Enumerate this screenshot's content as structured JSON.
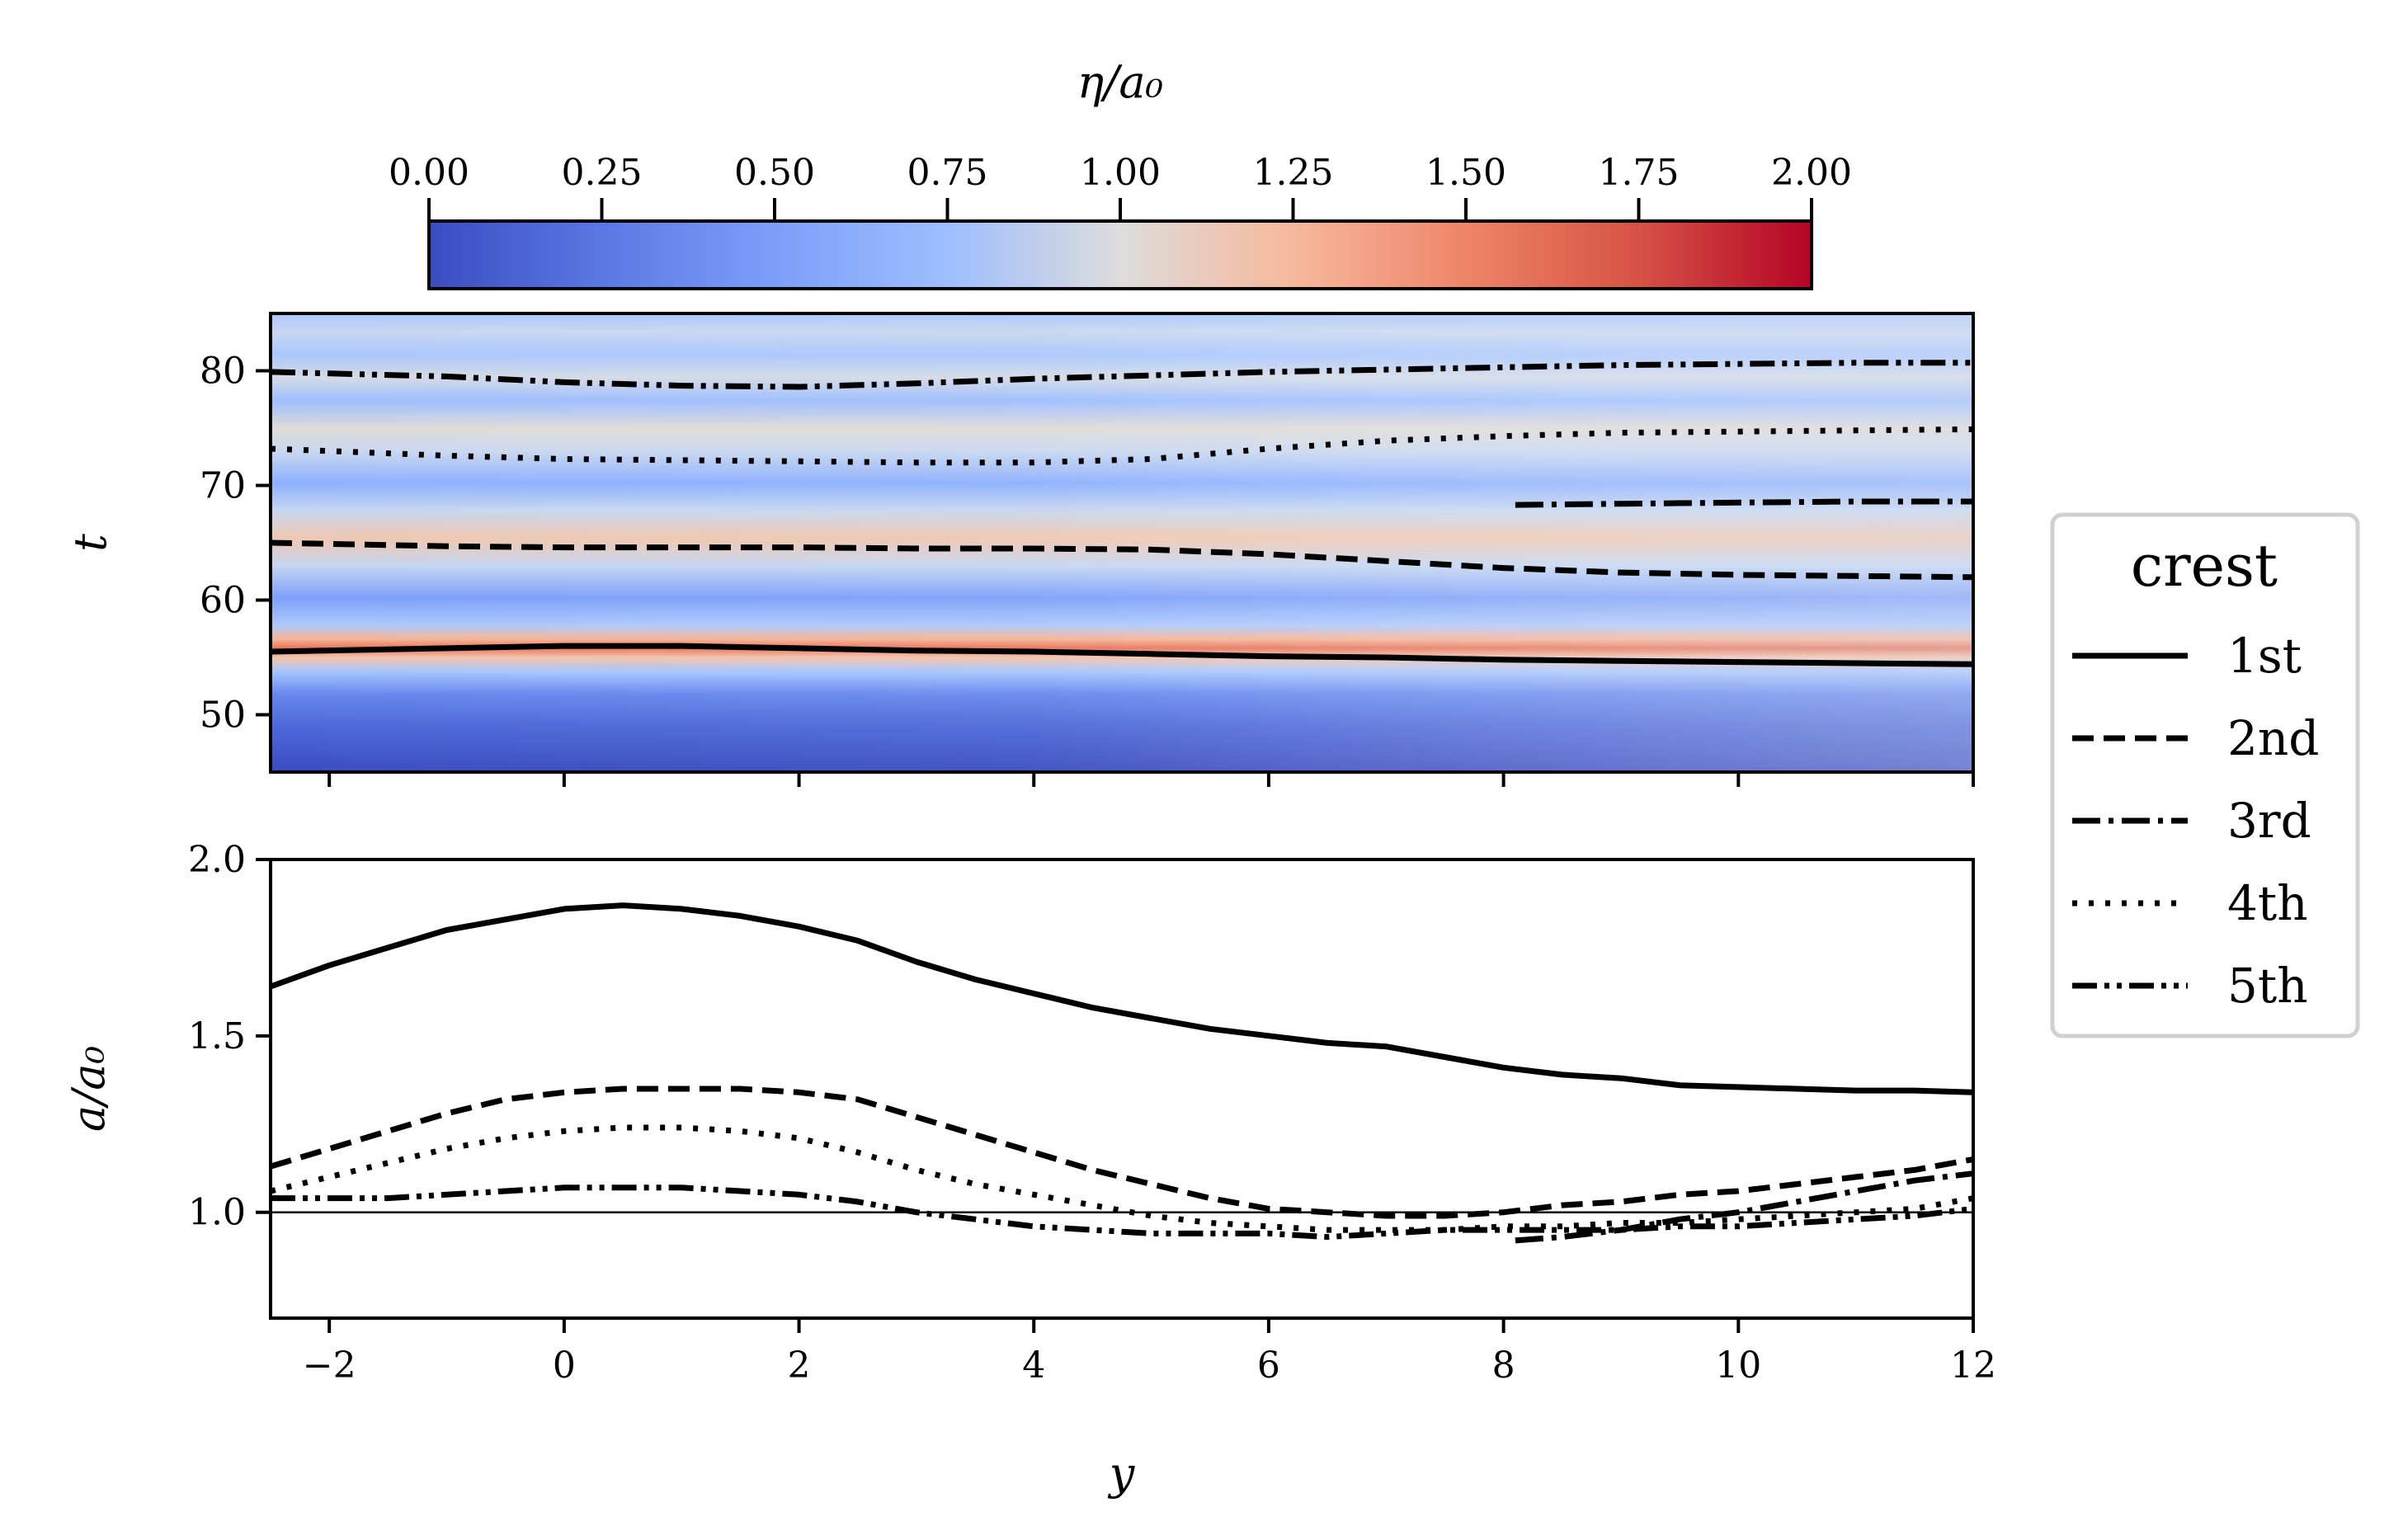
{
  "chart_data": [
    {
      "type": "heatmap",
      "panel": "top",
      "colorbar": {
        "label": "η/a₀",
        "range": [
          0.0,
          2.0
        ],
        "ticks": [
          "0.00",
          "0.25",
          "0.50",
          "0.75",
          "1.00",
          "1.25",
          "1.50",
          "1.75",
          "2.00"
        ],
        "colormap": "coolwarm"
      },
      "xlim": [
        -2.5,
        12
      ],
      "ylim": [
        45,
        85
      ],
      "ylabel": "t",
      "yticks": [
        "50",
        "60",
        "70",
        "80"
      ],
      "crest_lines": [
        {
          "name": "1st",
          "style": "solid",
          "x": [
            -2.5,
            -1,
            0,
            1,
            2,
            3,
            4,
            5,
            6,
            7,
            8,
            9,
            10,
            11,
            12
          ],
          "y": [
            55.5,
            55.8,
            56.0,
            56.0,
            55.8,
            55.6,
            55.5,
            55.3,
            55.1,
            55.0,
            54.8,
            54.7,
            54.6,
            54.5,
            54.4
          ]
        },
        {
          "name": "2nd",
          "style": "dashed",
          "x": [
            -2.5,
            -1,
            0,
            1,
            2,
            3,
            4,
            5,
            6,
            7,
            8,
            9,
            10,
            11,
            12
          ],
          "y": [
            65.0,
            64.7,
            64.6,
            64.6,
            64.6,
            64.5,
            64.5,
            64.4,
            64.0,
            63.4,
            62.8,
            62.4,
            62.2,
            62.1,
            62.0
          ]
        },
        {
          "name": "3rd",
          "style": "dashdot",
          "x": [
            8.1,
            9,
            10,
            11,
            12
          ],
          "y": [
            68.3,
            68.4,
            68.5,
            68.6,
            68.6
          ]
        },
        {
          "name": "4th",
          "style": "dotted",
          "x": [
            -2.5,
            -1,
            0,
            1,
            2,
            3,
            4,
            5,
            6,
            7,
            8,
            9,
            10,
            11,
            12
          ],
          "y": [
            73.2,
            72.6,
            72.3,
            72.2,
            72.1,
            72.0,
            72.0,
            72.3,
            73.2,
            73.9,
            74.3,
            74.6,
            74.7,
            74.8,
            74.9
          ]
        },
        {
          "name": "5th",
          "style": "dashdotdot",
          "x": [
            -2.5,
            -1,
            0,
            1,
            2,
            3,
            4,
            5,
            6,
            7,
            8,
            9,
            10,
            11,
            12
          ],
          "y": [
            79.9,
            79.5,
            79.0,
            78.7,
            78.6,
            78.9,
            79.3,
            79.6,
            79.9,
            80.1,
            80.3,
            80.5,
            80.6,
            80.7,
            80.7
          ]
        }
      ]
    },
    {
      "type": "line",
      "panel": "bottom",
      "xlabel": "y",
      "ylabel": "a/a₀",
      "xlim": [
        -2.5,
        12
      ],
      "ylim": [
        0.7,
        2.0
      ],
      "xticks": [
        "−2",
        "0",
        "2",
        "4",
        "6",
        "8",
        "10",
        "12"
      ],
      "yticks": [
        "1.0",
        "1.5",
        "2.0"
      ],
      "reference_line": 1.0,
      "series": [
        {
          "name": "1st",
          "style": "solid",
          "x": [
            -2.5,
            -2,
            -1.5,
            -1,
            -0.5,
            0,
            0.5,
            1,
            1.5,
            2,
            2.5,
            3,
            3.5,
            4,
            4.5,
            5,
            5.5,
            6,
            6.5,
            7,
            7.5,
            8,
            8.5,
            9,
            9.5,
            10,
            10.5,
            11,
            11.5,
            12
          ],
          "values": [
            1.64,
            1.7,
            1.75,
            1.8,
            1.83,
            1.86,
            1.87,
            1.86,
            1.84,
            1.81,
            1.77,
            1.71,
            1.66,
            1.62,
            1.58,
            1.55,
            1.52,
            1.5,
            1.48,
            1.47,
            1.44,
            1.41,
            1.39,
            1.38,
            1.36,
            1.355,
            1.35,
            1.345,
            1.345,
            1.34
          ]
        },
        {
          "name": "2nd",
          "style": "dashed",
          "x": [
            -2.5,
            -2,
            -1.5,
            -1,
            -0.5,
            0,
            0.5,
            1,
            1.5,
            2,
            2.5,
            3,
            3.5,
            4,
            4.5,
            5,
            5.5,
            6,
            6.5,
            7,
            7.5,
            8,
            8.5,
            9,
            9.5,
            10,
            10.5,
            11,
            11.5,
            12
          ],
          "values": [
            1.13,
            1.18,
            1.23,
            1.28,
            1.32,
            1.34,
            1.35,
            1.35,
            1.35,
            1.34,
            1.32,
            1.27,
            1.22,
            1.17,
            1.12,
            1.08,
            1.04,
            1.01,
            1.0,
            0.99,
            0.99,
            1.0,
            1.02,
            1.03,
            1.05,
            1.06,
            1.08,
            1.1,
            1.12,
            1.15
          ]
        },
        {
          "name": "3rd",
          "style": "dashdot",
          "x": [
            8.1,
            8.5,
            9,
            9.5,
            10,
            10.5,
            11,
            11.5,
            12
          ],
          "values": [
            0.92,
            0.93,
            0.95,
            0.98,
            1.0,
            1.03,
            1.06,
            1.09,
            1.11
          ]
        },
        {
          "name": "4th",
          "style": "dotted",
          "x": [
            -2.5,
            -2,
            -1.5,
            -1,
            -0.5,
            0,
            0.5,
            1,
            1.5,
            2,
            2.5,
            3,
            3.5,
            4,
            4.5,
            5,
            5.5,
            6,
            6.5,
            7,
            7.5,
            8,
            8.5,
            9,
            9.5,
            10,
            10.5,
            11,
            11.5,
            12
          ],
          "values": [
            1.06,
            1.1,
            1.14,
            1.18,
            1.21,
            1.23,
            1.24,
            1.24,
            1.23,
            1.21,
            1.17,
            1.12,
            1.08,
            1.05,
            1.02,
            0.99,
            0.97,
            0.96,
            0.95,
            0.95,
            0.95,
            0.96,
            0.96,
            0.97,
            0.97,
            0.98,
            0.99,
            1.0,
            1.01,
            1.04
          ]
        },
        {
          "name": "5th",
          "style": "dashdotdot",
          "x": [
            -2.5,
            -2,
            -1.5,
            -1,
            -0.5,
            0,
            0.5,
            1,
            1.5,
            2,
            2.5,
            3,
            3.5,
            4,
            4.5,
            5,
            5.5,
            6,
            6.5,
            7,
            7.5,
            8,
            8.5,
            9,
            9.5,
            10,
            10.5,
            11,
            11.5,
            12
          ],
          "values": [
            1.04,
            1.04,
            1.04,
            1.05,
            1.06,
            1.07,
            1.07,
            1.07,
            1.06,
            1.05,
            1.03,
            1.0,
            0.98,
            0.96,
            0.95,
            0.94,
            0.94,
            0.94,
            0.93,
            0.94,
            0.95,
            0.95,
            0.95,
            0.95,
            0.96,
            0.96,
            0.97,
            0.98,
            0.99,
            1.01
          ]
        }
      ]
    }
  ],
  "legend": {
    "title": "crest",
    "entries": [
      {
        "label": "1st",
        "style": "solid"
      },
      {
        "label": "2nd",
        "style": "dashed"
      },
      {
        "label": "3rd",
        "style": "dashdot"
      },
      {
        "label": "4th",
        "style": "dotted"
      },
      {
        "label": "5th",
        "style": "dashdotdot"
      }
    ]
  }
}
